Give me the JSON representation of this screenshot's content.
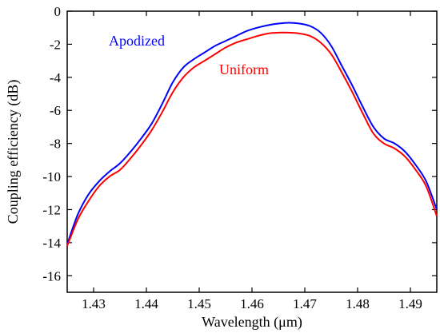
{
  "chart_data": {
    "type": "line",
    "title": "",
    "xlabel": "Wavelength (μm)",
    "ylabel": "Coupling efficiency (dB)",
    "xlim": [
      1.425,
      1.495
    ],
    "ylim": [
      -17,
      0
    ],
    "xticks": [
      1.43,
      1.44,
      1.45,
      1.46,
      1.47,
      1.48,
      1.49
    ],
    "xtick_labels": [
      "1.43",
      "1.44",
      "1.45",
      "1.46",
      "1.47",
      "1.48",
      "1.49"
    ],
    "yticks": [
      0,
      -2,
      -4,
      -6,
      -8,
      -10,
      -12,
      -14,
      -16
    ],
    "ytick_labels": [
      "0",
      "-2",
      "-4",
      "-6",
      "-8",
      "-10",
      "-12",
      "-14",
      "-16"
    ],
    "grid": false,
    "legend": "inline-labels",
    "series": [
      {
        "name": "Apodized",
        "color": "#0000ff",
        "x": [
          1.425,
          1.427,
          1.429,
          1.431,
          1.433,
          1.435,
          1.437,
          1.439,
          1.441,
          1.443,
          1.445,
          1.447,
          1.449,
          1.451,
          1.453,
          1.455,
          1.457,
          1.459,
          1.461,
          1.463,
          1.465,
          1.467,
          1.469,
          1.471,
          1.473,
          1.475,
          1.477,
          1.479,
          1.481,
          1.483,
          1.485,
          1.487,
          1.489,
          1.491,
          1.493,
          1.495
        ],
        "y": [
          -14.1,
          -12.3,
          -11.1,
          -10.3,
          -9.7,
          -9.2,
          -8.5,
          -7.7,
          -6.8,
          -5.6,
          -4.3,
          -3.4,
          -2.9,
          -2.5,
          -2.1,
          -1.8,
          -1.5,
          -1.2,
          -1.0,
          -0.85,
          -0.75,
          -0.7,
          -0.75,
          -0.9,
          -1.3,
          -2.1,
          -3.3,
          -4.5,
          -5.8,
          -7.0,
          -7.7,
          -8.0,
          -8.5,
          -9.3,
          -10.3,
          -12.0
        ]
      },
      {
        "name": "Uniform",
        "color": "#ff0000",
        "x": [
          1.425,
          1.427,
          1.429,
          1.431,
          1.433,
          1.435,
          1.437,
          1.439,
          1.441,
          1.443,
          1.445,
          1.447,
          1.449,
          1.451,
          1.453,
          1.455,
          1.457,
          1.459,
          1.461,
          1.463,
          1.465,
          1.467,
          1.469,
          1.471,
          1.473,
          1.475,
          1.477,
          1.479,
          1.481,
          1.483,
          1.485,
          1.487,
          1.489,
          1.491,
          1.493,
          1.495
        ],
        "y": [
          -14.2,
          -12.6,
          -11.5,
          -10.6,
          -10.0,
          -9.6,
          -8.9,
          -8.1,
          -7.2,
          -6.1,
          -4.9,
          -4.0,
          -3.4,
          -3.0,
          -2.6,
          -2.2,
          -1.9,
          -1.7,
          -1.5,
          -1.35,
          -1.3,
          -1.3,
          -1.35,
          -1.5,
          -1.9,
          -2.6,
          -3.7,
          -4.9,
          -6.2,
          -7.4,
          -8.0,
          -8.3,
          -8.8,
          -9.6,
          -10.6,
          -12.4
        ]
      }
    ]
  }
}
